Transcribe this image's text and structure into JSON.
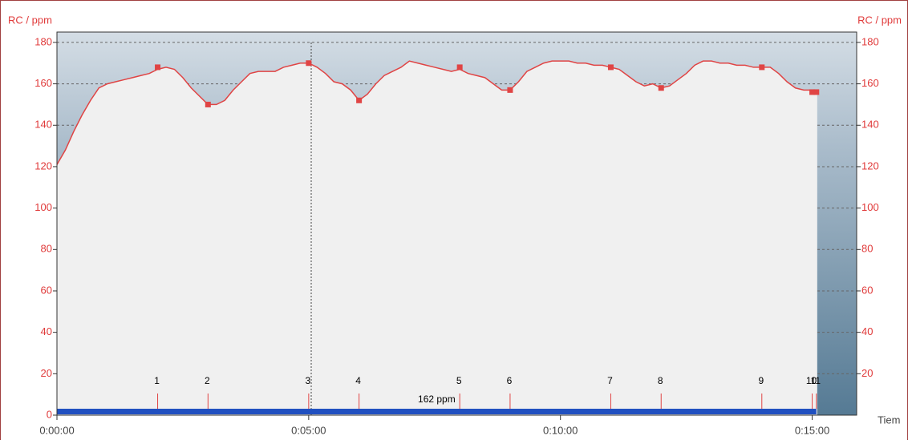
{
  "chart_data": {
    "type": "line",
    "y_label": "RC / ppm",
    "y2_label": "RC / ppm",
    "x_label": "Tiem",
    "xlim": [
      0,
      953
    ],
    "ylim": [
      0,
      185
    ],
    "y2lim": [
      0,
      185
    ],
    "xticks": [
      {
        "value": 0,
        "label": "0:00:00"
      },
      {
        "value": 300,
        "label": "0:05:00"
      },
      {
        "value": 600,
        "label": "0:10:00"
      },
      {
        "value": 900,
        "label": "0:15:00"
      }
    ],
    "yticks": [
      0,
      20,
      40,
      60,
      80,
      100,
      120,
      140,
      160,
      180
    ],
    "y2ticks": [
      20,
      40,
      60,
      80,
      100,
      120,
      140,
      160,
      180
    ],
    "grid": true,
    "color": "#e04444",
    "x": [
      0,
      10,
      20,
      30,
      40,
      50,
      60,
      70,
      80,
      90,
      100,
      110,
      120,
      130,
      140,
      150,
      160,
      170,
      180,
      190,
      200,
      210,
      220,
      230,
      240,
      250,
      260,
      270,
      280,
      290,
      300,
      310,
      320,
      330,
      340,
      350,
      360,
      370,
      380,
      390,
      400,
      410,
      420,
      430,
      440,
      450,
      460,
      470,
      480,
      490,
      500,
      510,
      520,
      530,
      540,
      550,
      560,
      570,
      580,
      590,
      600,
      610,
      620,
      630,
      640,
      650,
      660,
      670,
      680,
      690,
      700,
      710,
      720,
      730,
      740,
      750,
      760,
      770,
      780,
      790,
      800,
      810,
      820,
      830,
      840,
      850,
      860,
      870,
      880,
      890,
      900,
      906
    ],
    "values": [
      121,
      128,
      137,
      145,
      152,
      158,
      160,
      161,
      162,
      163,
      164,
      165,
      167,
      168,
      167,
      163,
      158,
      154,
      150,
      150,
      152,
      157,
      161,
      165,
      166,
      166,
      166,
      168,
      169,
      170,
      170,
      168,
      165,
      161,
      160,
      157,
      152,
      155,
      160,
      164,
      166,
      168,
      171,
      170,
      169,
      168,
      167,
      166,
      167,
      165,
      164,
      163,
      160,
      157,
      157,
      161,
      166,
      168,
      170,
      171,
      171,
      171,
      170,
      170,
      169,
      169,
      168,
      167,
      164,
      161,
      159,
      160,
      158,
      159,
      162,
      165,
      169,
      171,
      171,
      170,
      170,
      169,
      169,
      168,
      168,
      168,
      165,
      161,
      158,
      157,
      157,
      156
    ],
    "laps": {
      "labels": [
        1,
        2,
        3,
        4,
        5,
        6,
        7,
        8,
        9,
        10,
        11
      ],
      "x": [
        120,
        180,
        300,
        360,
        480,
        540,
        660,
        720,
        840,
        900,
        905
      ],
      "values": [
        168,
        150,
        170,
        152,
        168,
        157,
        168,
        158,
        168,
        156,
        156
      ]
    },
    "average": 162,
    "average_label": "162 ppm",
    "average_x": [
      0,
      905
    ],
    "average_color": "#2050c0"
  }
}
